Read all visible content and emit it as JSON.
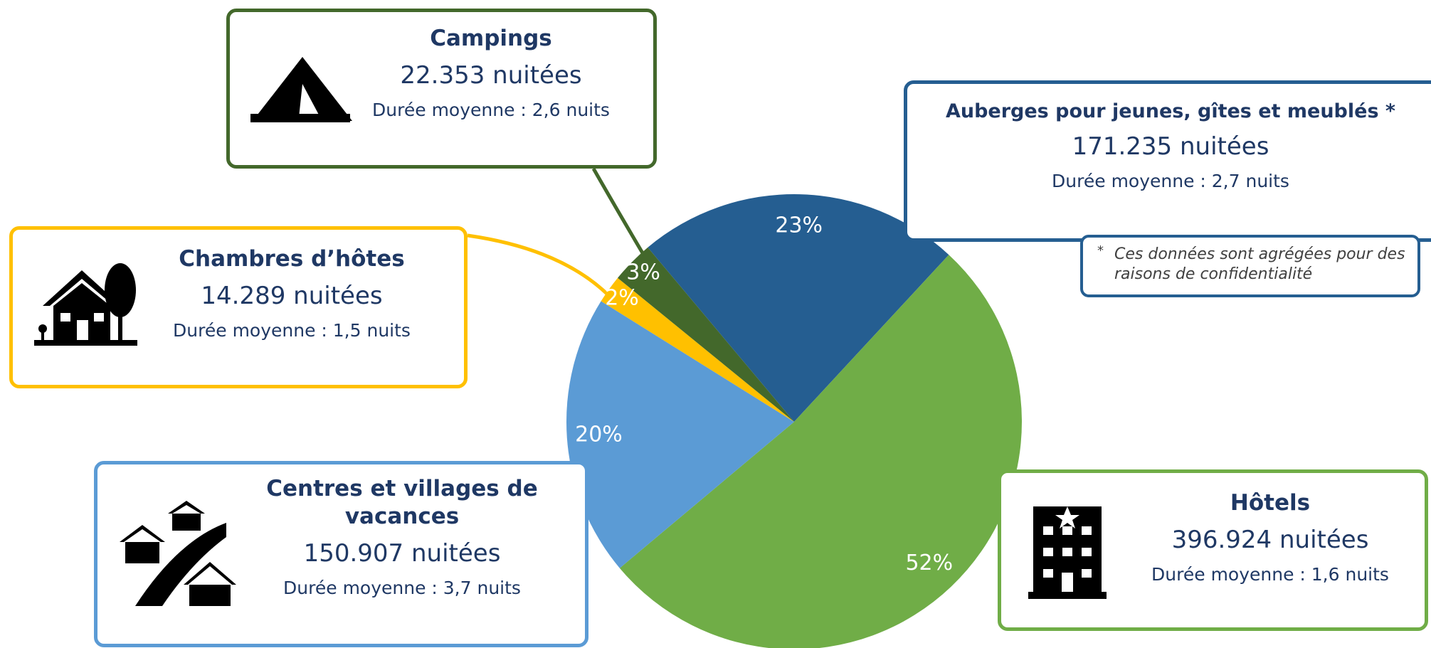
{
  "chart_data": {
    "type": "pie",
    "categories": [
      "Auberges pour jeunes, gîtes et meublés *",
      "Hôtels",
      "Centres et villages de vacances",
      "Chambres d’hôtes",
      "Campings"
    ],
    "values": [
      23,
      52,
      20,
      2,
      3
    ],
    "value_labels": [
      "23%",
      "52%",
      "20%",
      "2%",
      "3%"
    ],
    "colors": [
      "#255e91",
      "#70ad47",
      "#5b9bd5",
      "#ffc000",
      "#43682b"
    ],
    "callouts": [
      {
        "nights": "171.235 nuitées",
        "duration": "Durée moyenne : 2,7 nuits"
      },
      {
        "nights": "396.924 nuitées",
        "duration": "Durée moyenne : 1,6 nuits"
      },
      {
        "nights": "150.907 nuitées",
        "duration": "Durée moyenne : 3,7 nuits"
      },
      {
        "nights": "14.289 nuitées",
        "duration": "Durée moyenne : 1,5 nuits"
      },
      {
        "nights": "22.353 nuitées",
        "duration": "Durée moyenne : 2,6 nuits"
      }
    ],
    "footnote": {
      "mark": "*",
      "text": "Ces données sont agrégées pour des raisons de confidentialité"
    }
  }
}
